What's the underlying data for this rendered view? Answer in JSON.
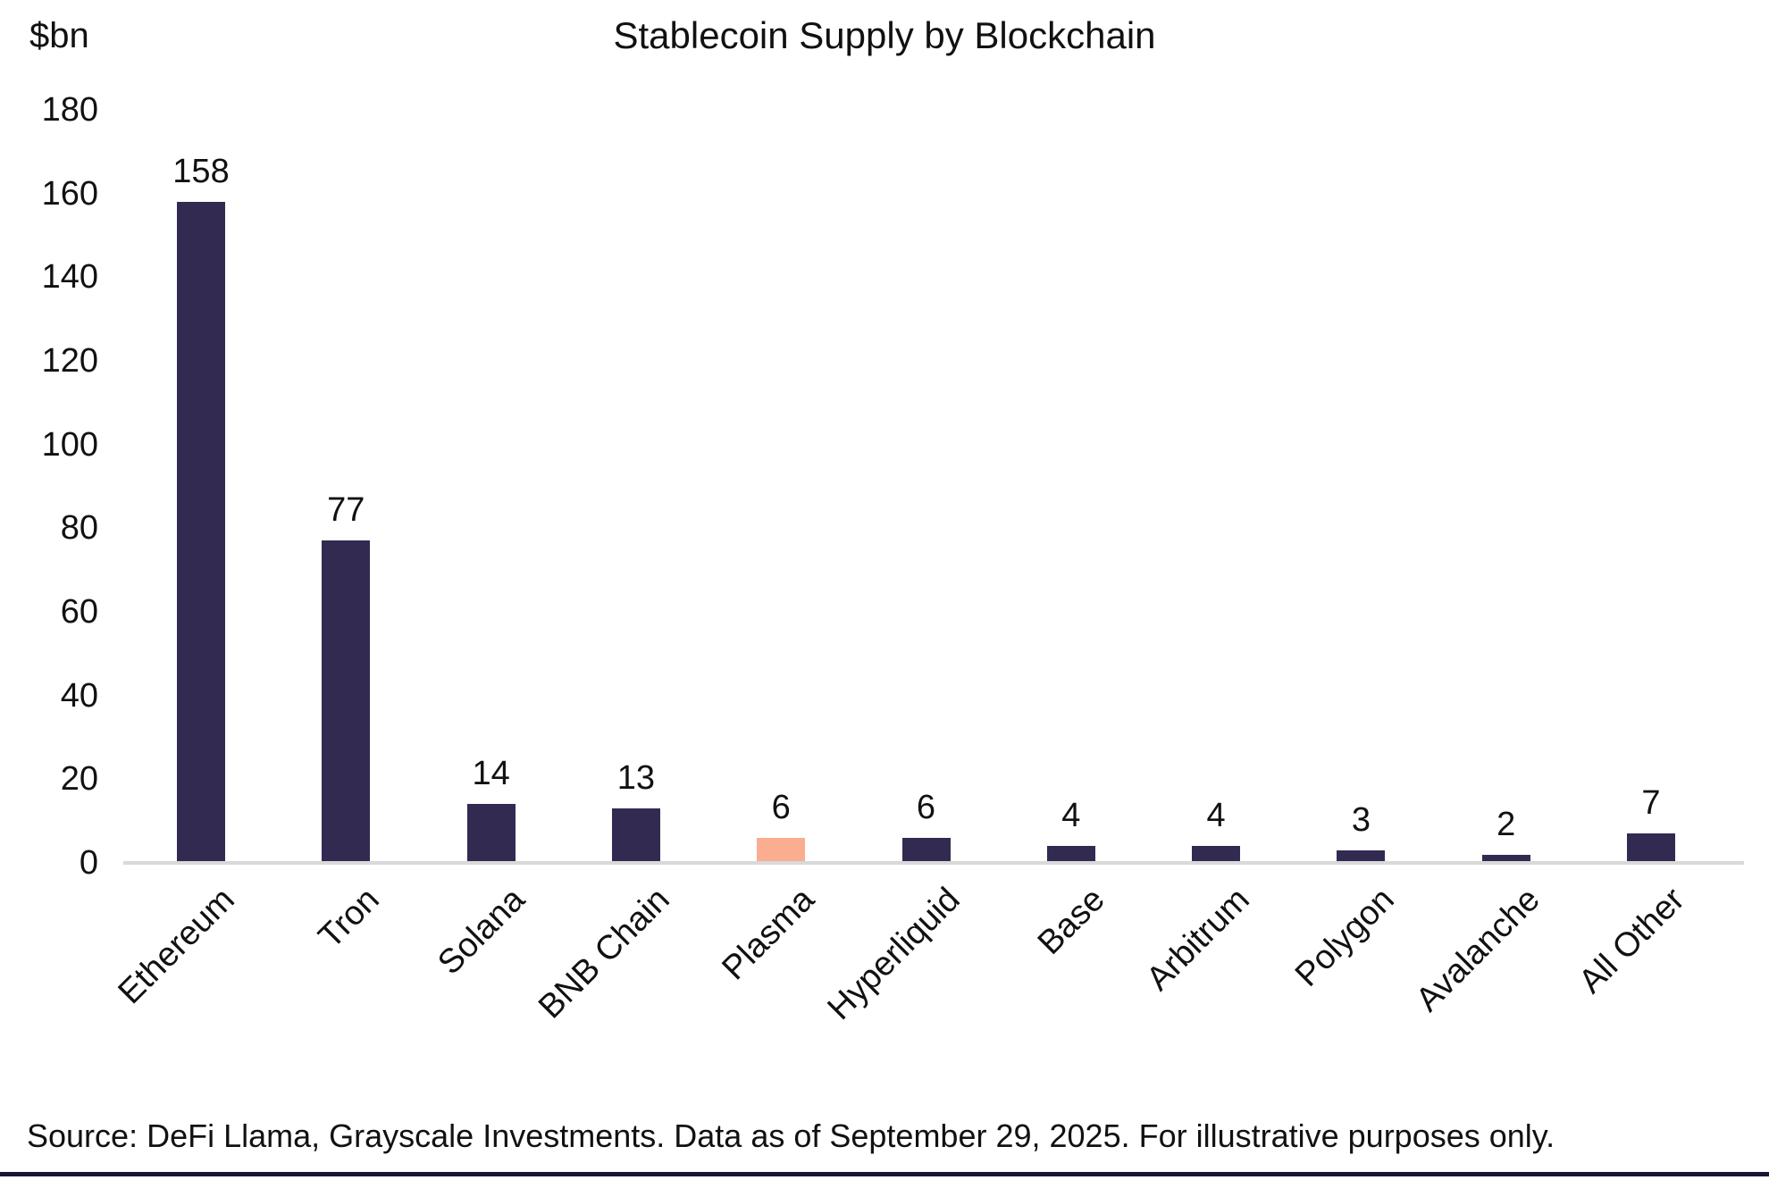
{
  "header": {
    "unit_label": "$bn",
    "title": "Stablecoin Supply by Blockchain"
  },
  "chart_data": {
    "type": "bar",
    "title": "Stablecoin Supply by Blockchain",
    "ylabel": "$bn",
    "xlabel": "",
    "categories": [
      "Ethereum",
      "Tron",
      "Solana",
      "BNB Chain",
      "Plasma",
      "Hyperliquid",
      "Base",
      "Arbitrum",
      "Polygon",
      "Avalanche",
      "All Other"
    ],
    "values": [
      158,
      77,
      14,
      13,
      6,
      6,
      4,
      4,
      3,
      2,
      7
    ],
    "data_labels": [
      "158",
      "77",
      "14",
      "13",
      "6",
      "6",
      "4",
      "4",
      "3",
      "2",
      "7"
    ],
    "highlighted_category": "Plasma",
    "highlighted_index": 4,
    "ylim": [
      0,
      180
    ],
    "yticks": [
      180,
      160,
      140,
      120,
      100,
      80,
      60,
      40,
      20,
      0
    ],
    "grid": false,
    "legend": false,
    "x_label_rotation_deg": 45,
    "colors": {
      "bar": "#332A52",
      "highlight": "#FBAD90",
      "axis_line": "#D9D9D9",
      "text": "#111111",
      "bottom_rule": "#1B1533"
    }
  },
  "footer": {
    "source": "Source: DeFi Llama, Grayscale Investments. Data as of September 29, 2025. For illustrative purposes only."
  }
}
